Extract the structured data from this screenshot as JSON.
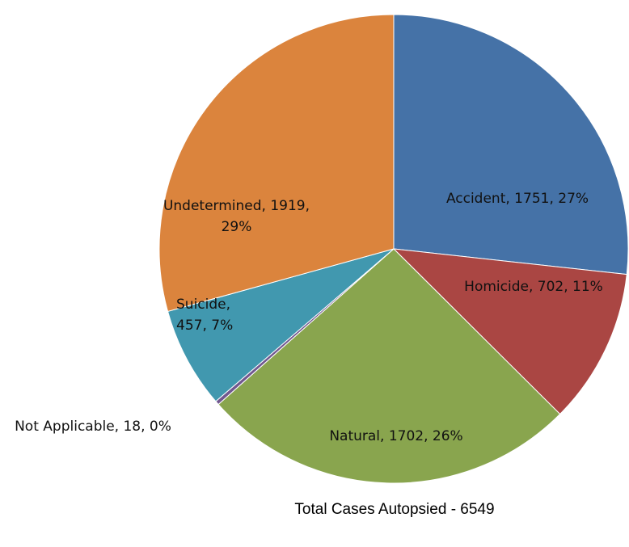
{
  "chart_data": {
    "type": "pie",
    "title": "Total Cases Autopsied - 6549",
    "categories": [
      "Accident",
      "Homicide",
      "Natural",
      "Not Applicable",
      "Suicide",
      "Undetermined"
    ],
    "values": [
      1751,
      702,
      1702,
      18,
      457,
      1919
    ],
    "value_labels": [
      "Accident, 1751, 27%",
      "Homicide, 702, 11%",
      "Natural, 1702, 26%",
      "Not Applicable, 18, 0%",
      "Suicide, 457, 7%",
      "Undetermined, 1919, 29%"
    ],
    "colors": [
      "#4572a7",
      "#aa4643",
      "#89a54e",
      "#71588f",
      "#4198af",
      "#db843d"
    ]
  }
}
